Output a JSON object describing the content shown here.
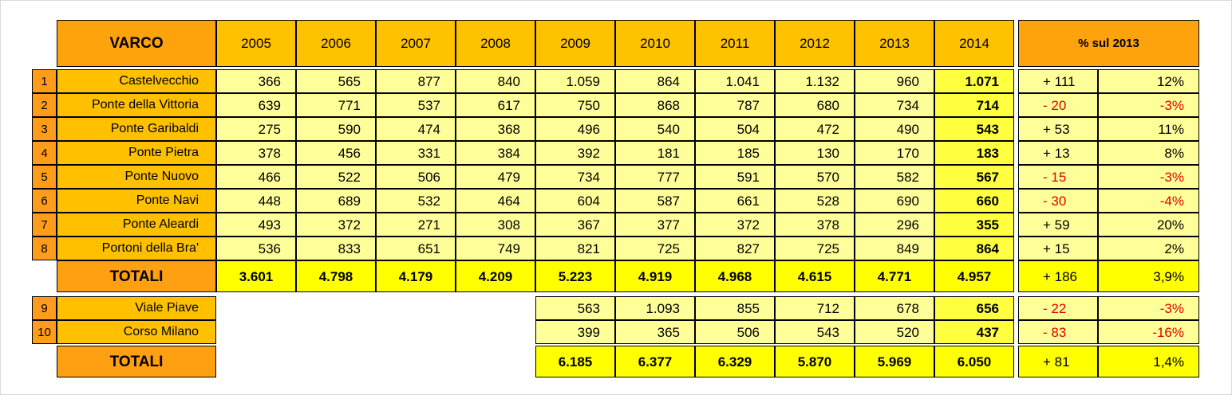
{
  "header": {
    "varco_label": "VARCO",
    "years": [
      "2005",
      "2006",
      "2007",
      "2008",
      "2009",
      "2010",
      "2011",
      "2012",
      "2013",
      "2014"
    ],
    "pct_label": "% sul 2013"
  },
  "rows": [
    {
      "idx": "1",
      "name": "Castelvecchio",
      "values": [
        "366",
        "565",
        "877",
        "840",
        "1.059",
        "864",
        "1.041",
        "1.132",
        "960",
        "1.071"
      ],
      "diff": "+ 111",
      "pct": "12%",
      "negative": false
    },
    {
      "idx": "2",
      "name": "Ponte della Vittoria",
      "values": [
        "639",
        "771",
        "537",
        "617",
        "750",
        "868",
        "787",
        "680",
        "734",
        "714"
      ],
      "diff": "- 20",
      "pct": "-3%",
      "negative": true
    },
    {
      "idx": "3",
      "name": "Ponte Garibaldi",
      "values": [
        "275",
        "590",
        "474",
        "368",
        "496",
        "540",
        "504",
        "472",
        "490",
        "543"
      ],
      "diff": "+ 53",
      "pct": "11%",
      "negative": false
    },
    {
      "idx": "4",
      "name": "Ponte Pietra",
      "values": [
        "378",
        "456",
        "331",
        "384",
        "392",
        "181",
        "185",
        "130",
        "170",
        "183"
      ],
      "diff": "+ 13",
      "pct": "8%",
      "negative": false
    },
    {
      "idx": "5",
      "name": "Ponte Nuovo",
      "values": [
        "466",
        "522",
        "506",
        "479",
        "734",
        "777",
        "591",
        "570",
        "582",
        "567"
      ],
      "diff": "- 15",
      "pct": "-3%",
      "negative": true
    },
    {
      "idx": "6",
      "name": "Ponte Navi",
      "values": [
        "448",
        "689",
        "532",
        "464",
        "604",
        "587",
        "661",
        "528",
        "690",
        "660"
      ],
      "diff": "- 30",
      "pct": "-4%",
      "negative": true
    },
    {
      "idx": "7",
      "name": "Ponte Aleardi",
      "values": [
        "493",
        "372",
        "271",
        "308",
        "367",
        "377",
        "372",
        "378",
        "296",
        "355"
      ],
      "diff": "+ 59",
      "pct": "20%",
      "negative": false
    },
    {
      "idx": "8",
      "name": "Portoni della Bra'",
      "values": [
        "536",
        "833",
        "651",
        "749",
        "821",
        "725",
        "827",
        "725",
        "849",
        "864"
      ],
      "diff": "+ 15",
      "pct": "2%",
      "negative": false
    }
  ],
  "totals1": {
    "label": "TOTALI",
    "values": [
      "3.601",
      "4.798",
      "4.179",
      "4.209",
      "5.223",
      "4.919",
      "4.968",
      "4.615",
      "4.771",
      "4.957"
    ],
    "diff": "+ 186",
    "pct": "3,9%"
  },
  "rows2": [
    {
      "idx": "9",
      "name": "Viale Piave",
      "values": [
        "563",
        "1.093",
        "855",
        "712",
        "678",
        "656"
      ],
      "diff": "- 22",
      "pct": "-3%",
      "negative": true
    },
    {
      "idx": "10",
      "name": "Corso Milano",
      "values": [
        "399",
        "365",
        "506",
        "543",
        "520",
        "437"
      ],
      "diff": "- 83",
      "pct": "-16%",
      "negative": true
    }
  ],
  "totals2": {
    "label": "TOTALI",
    "values": [
      "6.185",
      "6.377",
      "6.329",
      "5.870",
      "5.969",
      "6.050"
    ],
    "diff": "+ 81",
    "pct": "1,4%"
  }
}
